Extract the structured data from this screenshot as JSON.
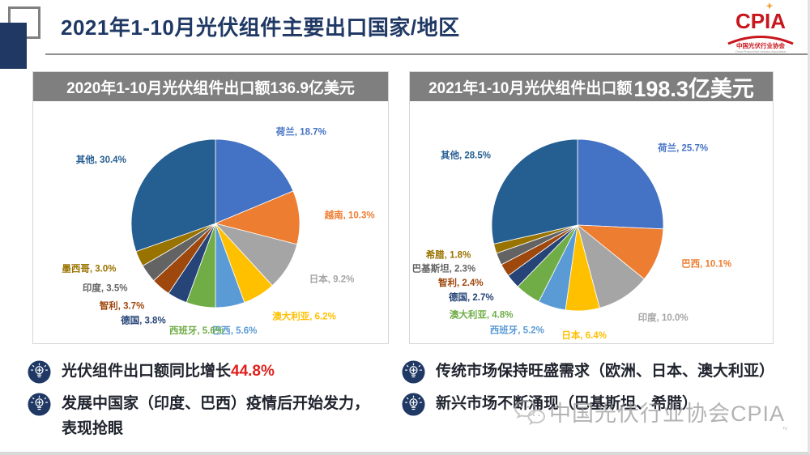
{
  "header": {
    "title": "2021年1-10月光伏组件主要出口国家/地区",
    "logo": {
      "text": "CPIA",
      "subtext": "中国光伏行业协会",
      "subtext_en": "China Photovoltaic Industry Association"
    }
  },
  "panels": [
    {
      "title_prefix": "2020年1-10月光伏组件出口额",
      "title_value": "136.9亿美元"
    },
    {
      "title_prefix": "2021年1-10月光伏组件出口额",
      "title_value": "198.3亿美元"
    }
  ],
  "chart_data": [
    {
      "type": "pie",
      "title": "2020年1-10月光伏组件出口额136.9亿美元",
      "unit": "%",
      "legend_position": "none",
      "slices": [
        {
          "label": "荷兰",
          "value": 18.7,
          "color": "#4472C4"
        },
        {
          "label": "越南",
          "value": 10.3,
          "color": "#ED7D31"
        },
        {
          "label": "日本",
          "value": 9.2,
          "color": "#A5A5A5"
        },
        {
          "label": "澳大利亚",
          "value": 6.2,
          "color": "#FFC000"
        },
        {
          "label": "巴西",
          "value": 5.6,
          "color": "#5B9BD5"
        },
        {
          "label": "西班牙",
          "value": 5.6,
          "color": "#70AD47"
        },
        {
          "label": "德国",
          "value": 3.8,
          "color": "#264478"
        },
        {
          "label": "智利",
          "value": 3.7,
          "color": "#9E480E"
        },
        {
          "label": "印度",
          "value": 3.5,
          "color": "#636363"
        },
        {
          "label": "墨西哥",
          "value": 3.0,
          "color": "#997300"
        },
        {
          "label": "其他",
          "value": 30.4,
          "color": "#255E91"
        }
      ]
    },
    {
      "type": "pie",
      "title": "2021年1-10月光伏组件出口额198.3亿美元",
      "unit": "%",
      "legend_position": "none",
      "slices": [
        {
          "label": "荷兰",
          "value": 25.7,
          "color": "#4472C4"
        },
        {
          "label": "巴西",
          "value": 10.1,
          "color": "#ED7D31"
        },
        {
          "label": "印度",
          "value": 10.0,
          "color": "#A5A5A5"
        },
        {
          "label": "日本",
          "value": 6.4,
          "color": "#FFC000"
        },
        {
          "label": "西班牙",
          "value": 5.2,
          "color": "#5B9BD5"
        },
        {
          "label": "澳大利亚",
          "value": 4.8,
          "color": "#70AD47"
        },
        {
          "label": "德国",
          "value": 2.7,
          "color": "#264478"
        },
        {
          "label": "智利",
          "value": 2.4,
          "color": "#9E480E"
        },
        {
          "label": "巴基斯坦",
          "value": 2.3,
          "color": "#636363"
        },
        {
          "label": "希腊",
          "value": 1.8,
          "color": "#997300"
        },
        {
          "label": "其他",
          "value": 28.5,
          "color": "#255E91"
        }
      ]
    }
  ],
  "bullets": {
    "left": [
      {
        "prefix": "光伏组件出口额同比增长",
        "highlight": "44.8%"
      },
      {
        "lines": [
          "发展中国家（印度、巴西）疫情后开始发力，",
          "表现抢眼"
        ]
      }
    ],
    "right": [
      {
        "text": "传统市场保持旺盛需求（欧洲、日本、澳大利亚）"
      },
      {
        "text": "新兴市场不断涌现（巴基斯坦、希腊）"
      }
    ]
  },
  "watermark": "中国光伏行业协会CPIA",
  "colors": {
    "title_navy": "#1F3864",
    "panel_bar_gray": "#7F7F7F",
    "highlight_red": "#E0201D",
    "watermark_gray": "#969696"
  }
}
